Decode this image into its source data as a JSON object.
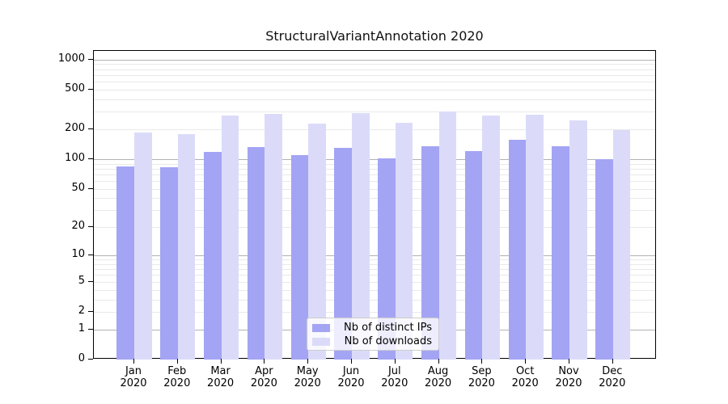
{
  "chart_data": {
    "type": "bar",
    "title": "StructuralVariantAnnotation 2020",
    "categories": [
      "Jan",
      "Feb",
      "Mar",
      "Apr",
      "May",
      "Jun",
      "Jul",
      "Aug",
      "Sep",
      "Oct",
      "Nov",
      "Dec"
    ],
    "year_label": "2020",
    "series": [
      {
        "name": "Nb of distinct IPs",
        "color": "#a4a4f4",
        "values": [
          84,
          82,
          118,
          133,
          110,
          131,
          101,
          135,
          120,
          157,
          135,
          100
        ]
      },
      {
        "name": "Nb of downloads",
        "color": "#dbdbf9",
        "values": [
          185,
          177,
          275,
          284,
          227,
          288,
          230,
          300,
          272,
          278,
          245,
          197
        ]
      }
    ],
    "yscale": "log1p",
    "ylim": [
      0,
      1218
    ],
    "yticks": [
      0,
      1,
      2,
      5,
      10,
      20,
      50,
      100,
      200,
      500,
      1000
    ],
    "grid": {
      "major": [
        1,
        10,
        100,
        1000
      ],
      "minor": [
        2,
        3,
        4,
        5,
        6,
        7,
        8,
        9,
        20,
        30,
        40,
        50,
        60,
        70,
        80,
        90,
        200,
        300,
        400,
        500,
        600,
        700,
        800,
        900
      ]
    },
    "legend_position": "lower center",
    "colors": {
      "major_grid": "#b2b2b2",
      "minor_grid": "#e9e9e9",
      "spine": "#000000",
      "background": "#ffffff"
    }
  }
}
